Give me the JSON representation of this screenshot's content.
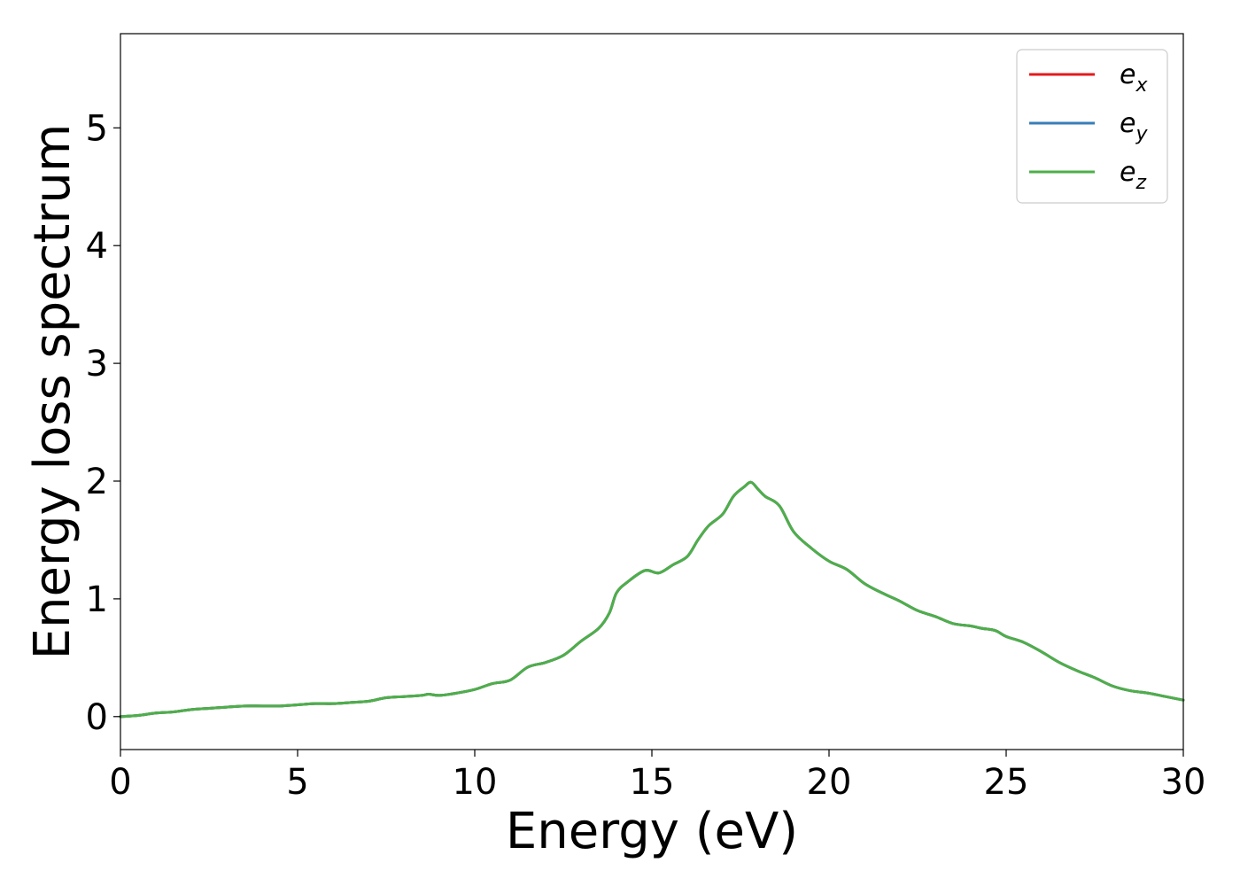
{
  "chart_data": {
    "type": "line",
    "title": "",
    "xlabel": "Energy (eV)",
    "ylabel": "Energy loss spectrum",
    "xlim": [
      0,
      30
    ],
    "ylim": [
      -0.28,
      5.8
    ],
    "xticks": [
      0,
      5,
      10,
      15,
      20,
      25,
      30
    ],
    "xtick_labels": [
      "0",
      "5",
      "10",
      "15",
      "20",
      "25",
      "30"
    ],
    "yticks": [
      0,
      1,
      2,
      3,
      4,
      5
    ],
    "ytick_labels": [
      "0",
      "1",
      "2",
      "3",
      "4",
      "5"
    ],
    "grid": false,
    "legend_position": "top-right",
    "x": [
      0,
      0.5,
      1,
      1.5,
      2,
      2.5,
      3,
      3.5,
      4,
      4.5,
      5,
      5.5,
      6,
      6.5,
      7,
      7.5,
      8,
      8.5,
      8.7,
      9,
      9.5,
      10,
      10.5,
      11,
      11.5,
      12,
      12.5,
      13,
      13.5,
      13.8,
      14,
      14.3,
      14.8,
      15.2,
      15.6,
      16,
      16.3,
      16.6,
      17,
      17.3,
      17.6,
      17.8,
      18,
      18.2,
      18.6,
      19,
      19.5,
      20,
      20.5,
      21,
      21.5,
      22,
      22.5,
      23,
      23.5,
      24,
      24.3,
      24.7,
      25,
      25.5,
      26,
      26.5,
      27,
      27.5,
      28,
      28.5,
      29,
      29.5,
      30
    ],
    "series": [
      {
        "name": "e",
        "subscript": "x",
        "color": "#e41a1c",
        "values": [
          0,
          0.01,
          0.03,
          0.04,
          0.06,
          0.07,
          0.08,
          0.09,
          0.09,
          0.09,
          0.1,
          0.11,
          0.11,
          0.12,
          0.13,
          0.16,
          0.17,
          0.18,
          0.19,
          0.18,
          0.2,
          0.23,
          0.28,
          0.31,
          0.42,
          0.46,
          0.52,
          0.64,
          0.75,
          0.88,
          1.05,
          1.14,
          1.24,
          1.22,
          1.29,
          1.36,
          1.5,
          1.62,
          1.72,
          1.87,
          1.95,
          1.99,
          1.93,
          1.87,
          1.79,
          1.57,
          1.43,
          1.32,
          1.25,
          1.13,
          1.05,
          0.98,
          0.9,
          0.85,
          0.79,
          0.77,
          0.75,
          0.73,
          0.68,
          0.63,
          0.55,
          0.46,
          0.39,
          0.33,
          0.26,
          0.22,
          0.2,
          0.17,
          0.14
        ]
      },
      {
        "name": "e",
        "subscript": "y",
        "color": "#377eb8",
        "values": [
          0,
          0.01,
          0.03,
          0.04,
          0.06,
          0.07,
          0.08,
          0.09,
          0.09,
          0.09,
          0.1,
          0.11,
          0.11,
          0.12,
          0.13,
          0.16,
          0.17,
          0.18,
          0.19,
          0.18,
          0.2,
          0.23,
          0.28,
          0.31,
          0.42,
          0.46,
          0.52,
          0.64,
          0.75,
          0.88,
          1.05,
          1.14,
          1.24,
          1.22,
          1.29,
          1.36,
          1.5,
          1.62,
          1.72,
          1.87,
          1.95,
          1.99,
          1.93,
          1.87,
          1.79,
          1.57,
          1.43,
          1.32,
          1.25,
          1.13,
          1.05,
          0.98,
          0.9,
          0.85,
          0.79,
          0.77,
          0.75,
          0.73,
          0.68,
          0.63,
          0.55,
          0.46,
          0.39,
          0.33,
          0.26,
          0.22,
          0.2,
          0.17,
          0.14
        ]
      },
      {
        "name": "e",
        "subscript": "z",
        "color": "#4daf4a",
        "values": [
          0,
          0.01,
          0.03,
          0.04,
          0.06,
          0.07,
          0.08,
          0.09,
          0.09,
          0.09,
          0.1,
          0.11,
          0.11,
          0.12,
          0.13,
          0.16,
          0.17,
          0.18,
          0.19,
          0.18,
          0.2,
          0.23,
          0.28,
          0.31,
          0.42,
          0.46,
          0.52,
          0.64,
          0.75,
          0.88,
          1.05,
          1.14,
          1.24,
          1.22,
          1.29,
          1.36,
          1.5,
          1.62,
          1.72,
          1.87,
          1.95,
          1.99,
          1.93,
          1.87,
          1.79,
          1.57,
          1.43,
          1.32,
          1.25,
          1.13,
          1.05,
          0.98,
          0.9,
          0.85,
          0.79,
          0.77,
          0.75,
          0.73,
          0.68,
          0.63,
          0.55,
          0.46,
          0.39,
          0.33,
          0.26,
          0.22,
          0.2,
          0.17,
          0.14
        ]
      }
    ]
  }
}
